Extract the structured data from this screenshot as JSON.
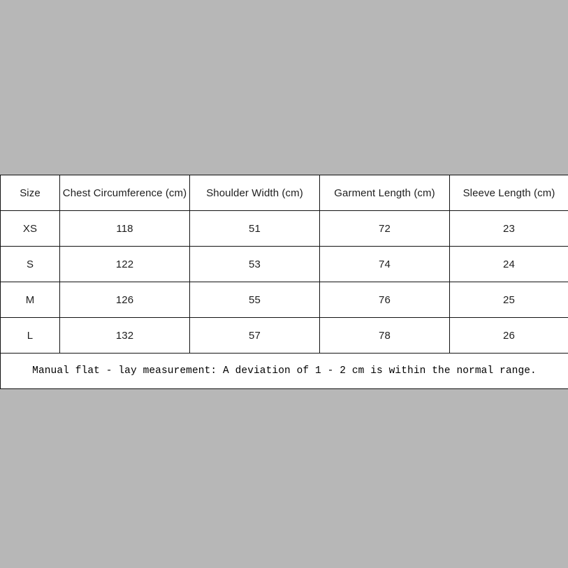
{
  "page": {
    "background_color": "#b7b7b7",
    "table_background_color": "#ffffff",
    "border_color": "#121212",
    "text_color": "#1e1e1e"
  },
  "chart_data": {
    "type": "table",
    "title": "",
    "columns": [
      "Size",
      "Chest Circumference (cm)",
      "Shoulder Width (cm)",
      "Garment Length (cm)",
      "Sleeve Length (cm)"
    ],
    "rows": [
      [
        "XS",
        "118",
        "51",
        "72",
        "23"
      ],
      [
        "S",
        "122",
        "53",
        "74",
        "24"
      ],
      [
        "M",
        "126",
        "55",
        "76",
        "25"
      ],
      [
        "L",
        "132",
        "57",
        "78",
        "26"
      ]
    ],
    "note": "Manual flat - lay measurement: A deviation of 1 - 2 cm is within the normal range."
  }
}
